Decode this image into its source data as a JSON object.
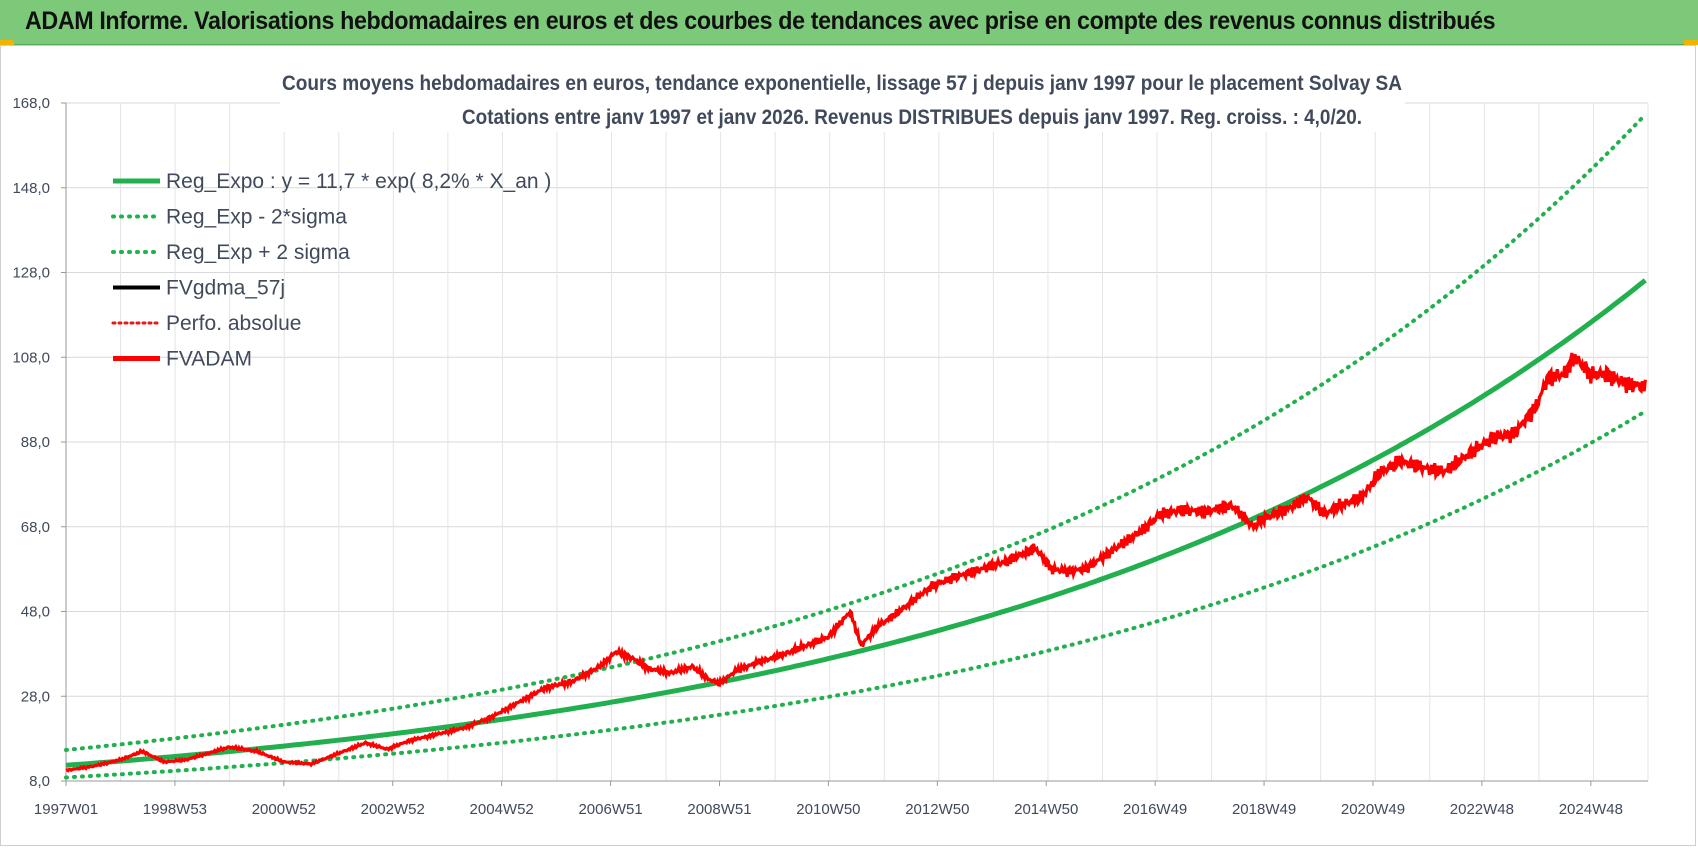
{
  "banner": {
    "title": "ADAM Informe. Valorisations hebdomadaires en euros et des courbes de tendances avec prise en compte des revenus connus distribués",
    "background": "#7dc97a"
  },
  "chart_data": {
    "type": "line",
    "title": "Cours moyens hebdomadaires en euros, tendance exponentielle, lissage 57 j depuis janv 1997 pour le placement Solvay SA",
    "subtitle": "Cotations entre janv 1997 et janv 2026. Revenus DISTRIBUES depuis janv 1997. Reg. croiss. : 4,0/20.",
    "xlabel": "",
    "ylabel": "",
    "xlim": [
      1997.0,
      2026.05
    ],
    "ylim": [
      8.0,
      168.0
    ],
    "y_ticks": [
      "8,0",
      "28,0",
      "48,0",
      "68,0",
      "88,0",
      "108,0",
      "128,0",
      "148,0",
      "168,0"
    ],
    "y_tick_values": [
      8,
      28,
      48,
      68,
      88,
      108,
      128,
      148,
      168
    ],
    "x_ticks": [
      "1997W01",
      "1998W53",
      "2000W52",
      "2002W52",
      "2004W52",
      "2006W51",
      "2008W51",
      "2010W50",
      "2012W50",
      "2014W50",
      "2016W49",
      "2018W49",
      "2020W49",
      "2022W48",
      "2024W48"
    ],
    "x_tick_values": [
      1997.0,
      1999.0,
      2001.0,
      2003.0,
      2005.0,
      2007.0,
      2009.0,
      2011.0,
      2013.0,
      2015.0,
      2017.0,
      2019.0,
      2021.0,
      2023.0,
      2025.0
    ],
    "grid": true,
    "legend_position": "top-left",
    "regression": {
      "a": 11.7,
      "rate": 0.082,
      "lower_factor": 0.755,
      "upper_factor": 1.31
    },
    "series": [
      {
        "name": "Reg_Expo : y = 11,7 * exp( 8,2% *  X_an )",
        "color": "#22b04f",
        "style": "solid",
        "role": "reg"
      },
      {
        "name": "Reg_Exp - 2*sigma",
        "color": "#22b04f",
        "style": "dotted",
        "role": "reg_low"
      },
      {
        "name": "Reg_Exp + 2 sigma",
        "color": "#22b04f",
        "style": "dotted",
        "role": "reg_high"
      },
      {
        "name": "FVgdma_57j",
        "color": "#000000",
        "style": "solid",
        "role": "smooth"
      },
      {
        "name": "Perfo. absolue",
        "color": "#e31a1c",
        "style": "dotted",
        "role": "perfo"
      },
      {
        "name": "FVADAM",
        "color": "#ff0000",
        "style": "solid",
        "role": "price"
      }
    ],
    "price_points": {
      "x": [
        1997.0,
        1997.5,
        1998.0,
        1998.4,
        1998.8,
        1999.2,
        1999.6,
        2000.0,
        2000.5,
        2001.0,
        2001.5,
        2002.0,
        2002.5,
        2002.9,
        2003.3,
        2003.8,
        2004.3,
        2004.8,
        2005.3,
        2005.8,
        2006.3,
        2006.8,
        2007.1,
        2007.4,
        2007.7,
        2008.1,
        2008.5,
        2008.8,
        2009.0,
        2009.3,
        2009.7,
        2010.1,
        2010.5,
        2011.0,
        2011.4,
        2011.6,
        2011.9,
        2012.2,
        2012.5,
        2012.9,
        2013.3,
        2013.8,
        2014.3,
        2014.8,
        2015.1,
        2015.4,
        2015.7,
        2016.0,
        2016.4,
        2016.8,
        2017.1,
        2017.5,
        2017.9,
        2018.4,
        2018.8,
        2019.0,
        2019.4,
        2019.8,
        2020.1,
        2020.4,
        2020.8,
        2021.1,
        2021.5,
        2021.9,
        2022.3,
        2022.8,
        2023.2,
        2023.6,
        2024.0,
        2024.2,
        2024.5,
        2024.7,
        2025.0,
        2025.3,
        2025.6,
        2026.0
      ],
      "y": [
        10.5,
        11.5,
        13.0,
        15.0,
        12.5,
        13.0,
        14.5,
        16.0,
        15.0,
        12.5,
        12.0,
        14.5,
        17.0,
        15.5,
        17.5,
        19.0,
        20.5,
        23.0,
        26.5,
        30.0,
        31.5,
        35.0,
        38.5,
        37.0,
        34.5,
        33.5,
        35.0,
        32.0,
        31.0,
        34.0,
        36.0,
        37.5,
        39.5,
        42.0,
        48.0,
        40.0,
        44.5,
        47.0,
        50.0,
        54.0,
        56.0,
        58.0,
        60.0,
        63.0,
        58.0,
        57.5,
        58.0,
        60.5,
        64.0,
        67.5,
        71.0,
        72.0,
        71.5,
        73.0,
        68.0,
        70.0,
        72.0,
        75.0,
        71.0,
        73.0,
        75.0,
        80.5,
        83.5,
        82.0,
        81.0,
        85.5,
        89.0,
        90.0,
        96.5,
        103.0,
        104.0,
        108.0,
        104.0,
        104.0,
        102.0,
        101.0
      ]
    }
  }
}
